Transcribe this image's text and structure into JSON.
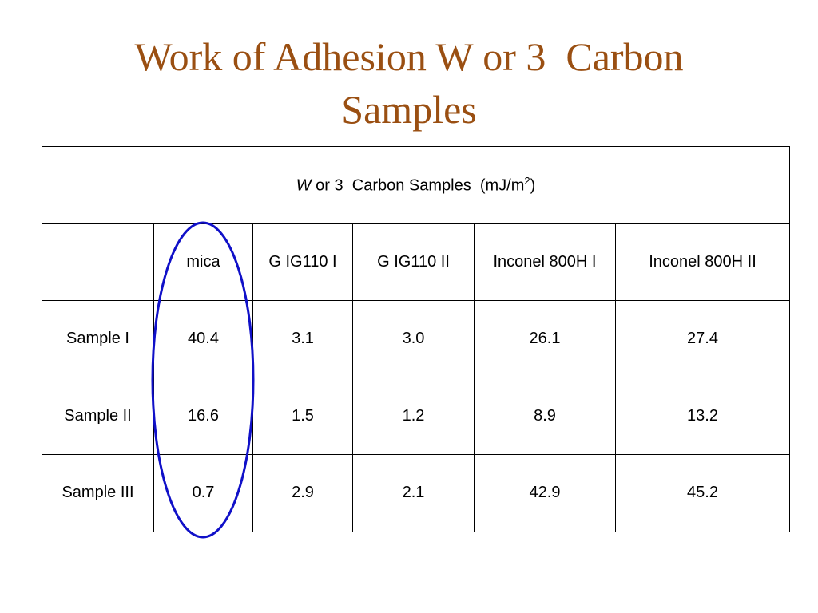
{
  "title": "Work of Adhesion W or 3  Carbon Samples",
  "table": {
    "caption_parts": [
      "W",
      "or 3  Carbon Samples  (mJ/m",
      "2",
      ")"
    ],
    "columns": [
      "mica",
      "G IG110 I",
      "G IG110 II",
      "Inconel 800H I",
      "Inconel 800H II"
    ],
    "rows": [
      {
        "label": "Sample I",
        "values": [
          "40.4",
          "3.1",
          "3.0",
          "26.1",
          "27.4"
        ]
      },
      {
        "label": "Sample II",
        "values": [
          "16.6",
          "1.5",
          "1.2",
          "8.9",
          "13.2"
        ]
      },
      {
        "label": "Sample III",
        "values": [
          "0.7",
          "2.9",
          "2.1",
          "42.9",
          "45.2"
        ]
      }
    ]
  }
}
